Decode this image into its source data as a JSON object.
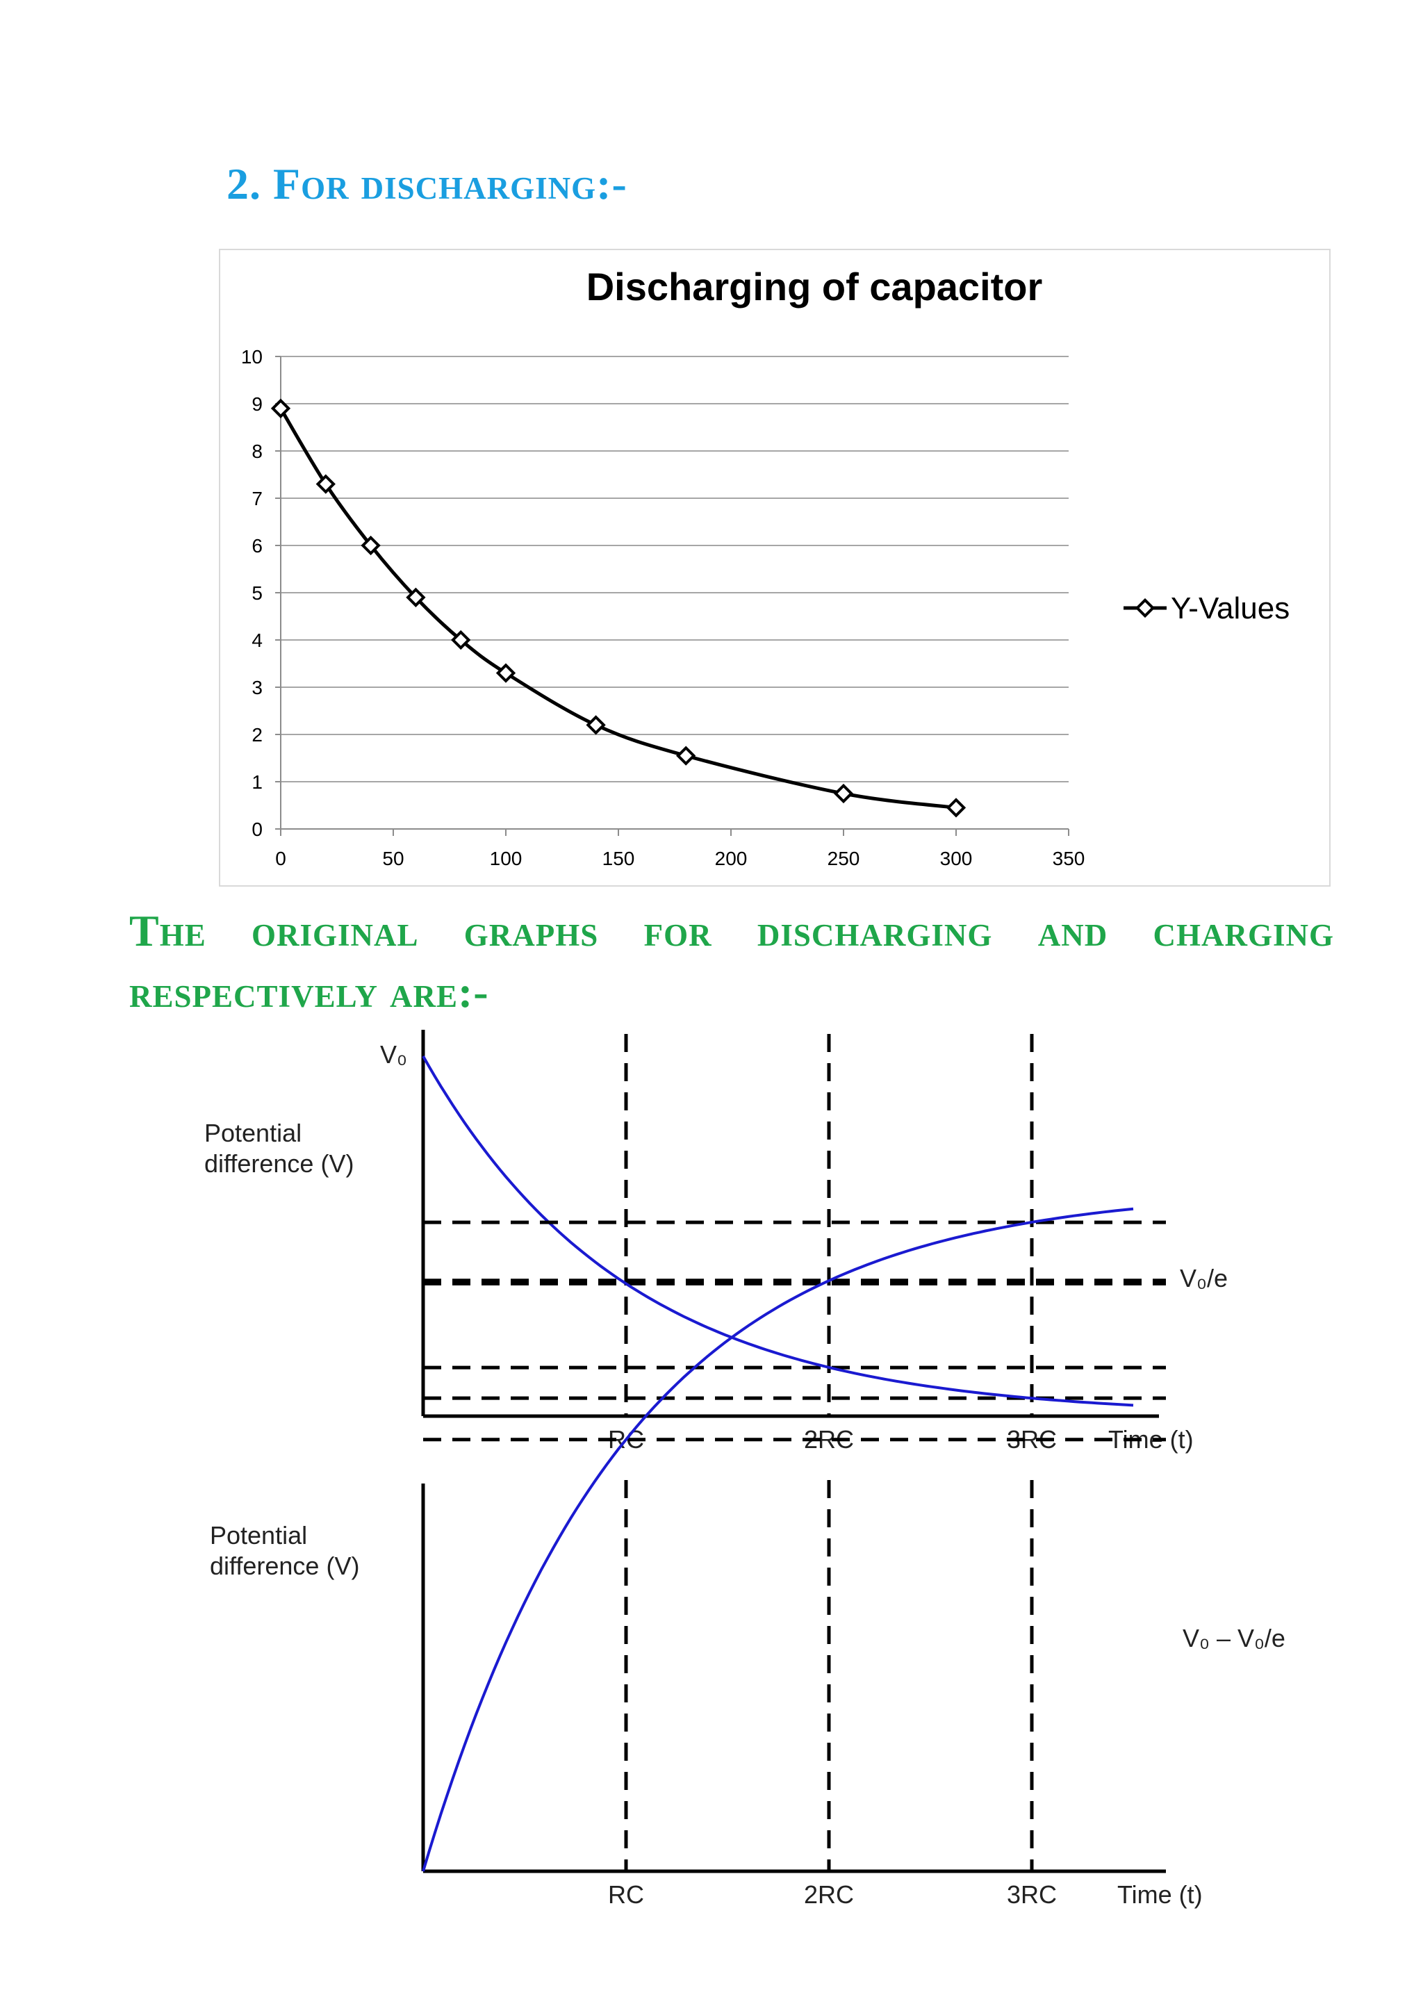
{
  "headings": {
    "section": "2. For discharging:-",
    "originals": "The original graphs for discharging and charging respectively are:-"
  },
  "chart_data": [
    {
      "type": "line",
      "title": "Discharging of capacitor",
      "xlabel": "",
      "ylabel": "",
      "xlim": [
        0,
        350
      ],
      "ylim": [
        0,
        10
      ],
      "x_ticks": [
        0,
        50,
        100,
        150,
        200,
        250,
        300,
        350
      ],
      "y_ticks": [
        0,
        1,
        2,
        3,
        4,
        5,
        6,
        7,
        8,
        9,
        10
      ],
      "grid": "horizontal",
      "legend_position": "right",
      "series": [
        {
          "name": "Y-Values",
          "marker": "diamond",
          "color": "#000000",
          "x": [
            0,
            20,
            40,
            60,
            80,
            100,
            140,
            180,
            250,
            300
          ],
          "y": [
            8.9,
            7.3,
            6.0,
            4.9,
            4.0,
            3.3,
            2.2,
            1.55,
            0.75,
            0.45
          ]
        }
      ]
    },
    {
      "type": "line",
      "subtype": "discharging",
      "ylabel": "Potential difference (V)",
      "xlabel": "Time (t)",
      "y_axis_top_label": "V₀",
      "x_tick_labels": [
        "RC",
        "2RC",
        "3RC"
      ],
      "reference_label": "V₀/e",
      "curve": "V = V₀ e^(-t/RC)",
      "x_multiples_of_RC": [
        0,
        1,
        2,
        3,
        3.5
      ],
      "y_fraction_of_V0": [
        1.0,
        0.368,
        0.135,
        0.05,
        0.03
      ],
      "color": "#1a1ad0"
    },
    {
      "type": "line",
      "subtype": "charging",
      "ylabel": "Potential difference (V)",
      "xlabel": "Time (t)",
      "x_tick_labels": [
        "RC",
        "2RC",
        "3RC"
      ],
      "reference_label": "V₀ – V₀/e",
      "curve": "V = V₀ (1 - e^(-t/RC))",
      "x_multiples_of_RC": [
        0,
        1,
        2,
        3,
        3.5
      ],
      "y_fraction_of_V0": [
        0.0,
        0.632,
        0.865,
        0.95,
        0.97
      ],
      "color": "#1a1ad0"
    }
  ]
}
